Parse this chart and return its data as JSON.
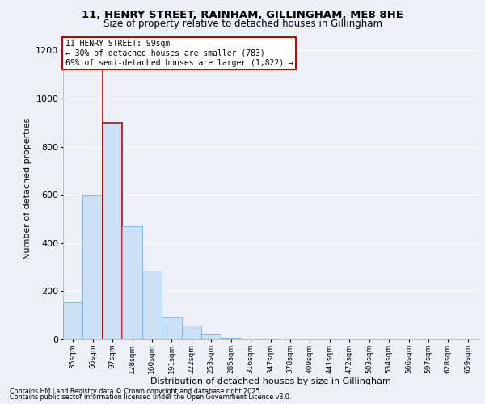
{
  "title_line1": "11, HENRY STREET, RAINHAM, GILLINGHAM, ME8 8HE",
  "title_line2": "Size of property relative to detached houses in Gillingham",
  "xlabel": "Distribution of detached houses by size in Gillingham",
  "ylabel": "Number of detached properties",
  "annotation_title": "11 HENRY STREET: 99sqm",
  "annotation_line2": "← 30% of detached houses are smaller (783)",
  "annotation_line3": "69% of semi-detached houses are larger (1,822) →",
  "footer_line1": "Contains HM Land Registry data © Crown copyright and database right 2025.",
  "footer_line2": "Contains public sector information licensed under the Open Government Licence v3.0.",
  "categories": [
    "35sqm",
    "66sqm",
    "97sqm",
    "128sqm",
    "160sqm",
    "191sqm",
    "222sqm",
    "253sqm",
    "285sqm",
    "316sqm",
    "347sqm",
    "378sqm",
    "409sqm",
    "441sqm",
    "472sqm",
    "503sqm",
    "534sqm",
    "566sqm",
    "597sqm",
    "628sqm",
    "659sqm"
  ],
  "values": [
    155,
    600,
    900,
    470,
    285,
    95,
    57,
    22,
    8,
    4,
    2,
    1,
    0,
    0,
    0,
    0,
    0,
    0,
    0,
    0,
    0
  ],
  "bar_color": "#cce0f5",
  "bar_edge_color": "#7ab0d4",
  "highlight_bar_index": 2,
  "highlight_bar_edge_color": "#cc0000",
  "annotation_box_edge_color": "#cc0000",
  "property_line_x": 1.5,
  "ylim": [
    0,
    1250
  ],
  "yticks": [
    0,
    200,
    400,
    600,
    800,
    1000,
    1200
  ],
  "background_color": "#eef0f8",
  "plot_bg_color": "#eef0f8",
  "grid_color": "#ffffff"
}
